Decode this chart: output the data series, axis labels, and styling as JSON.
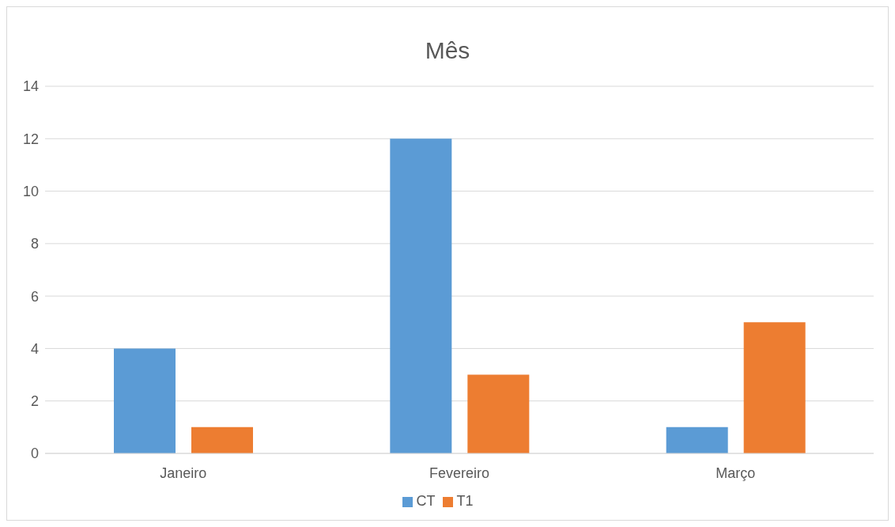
{
  "chart_data": {
    "type": "bar",
    "title": "Mês",
    "categories": [
      "Janeiro",
      "Fevereiro",
      "Março"
    ],
    "series": [
      {
        "name": "CT",
        "color": "#5b9bd5",
        "values": [
          4,
          12,
          1
        ]
      },
      {
        "name": "T1",
        "color": "#ed7d31",
        "values": [
          1,
          3,
          5
        ]
      }
    ],
    "ylim": [
      0,
      14
    ],
    "yticks": [
      0,
      2,
      4,
      6,
      8,
      10,
      12,
      14
    ],
    "grid": "y",
    "legend": "bottom"
  }
}
